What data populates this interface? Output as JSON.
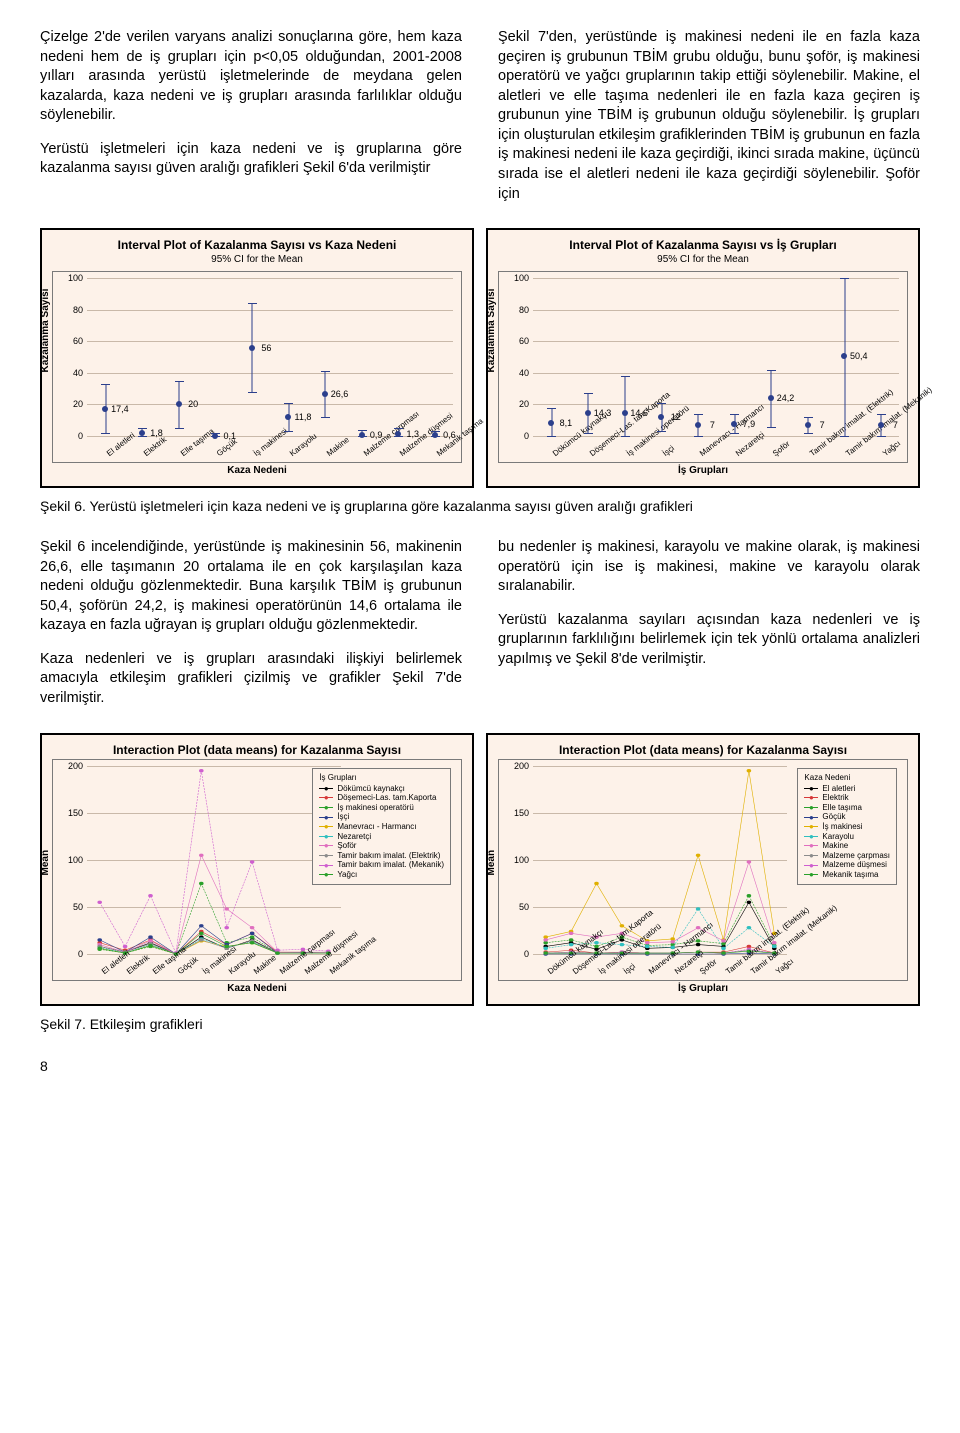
{
  "para1": "Çizelge 2'de verilen varyans analizi sonuçlarına göre, hem kaza nedeni hem de iş grupları için p<0,05 olduğundan, 2001-2008 yılları arasında yerüstü işletmelerinde de meydana gelen kazalarda, kaza nedeni ve iş grupları arasında farlılıklar olduğu söylenebilir.",
  "para2": "Yerüstü işletmeleri için kaza nedeni ve iş gruplarına göre kazalanma sayısı güven aralığı grafikleri Şekil 6'da verilmiştir",
  "para3": "Şekil 7'den, yerüstünde iş makinesi nedeni ile en fazla kaza geçiren iş grubunun TBİM grubu olduğu, bunu şoför, iş makinesi operatörü ve yağcı gruplarının takip ettiği söylenebilir. Makine, el aletleri ve elle taşıma nedenleri ile en fazla kaza geçiren iş grubunun yine TBİM iş grubunun olduğu söylenebilir. İş grupları için oluşturulan etkileşim grafiklerinden TBİM iş grubunun en fazla iş makinesi nedeni ile kaza geçirdiği, ikinci sırada makine, üçüncü sırada ise el aletleri nedeni ile kaza geçirdiği söylenebilir. Şoför için",
  "cap6": "Şekil 6. Yerüstü işletmeleri için kaza nedeni ve iş gruplarına göre kazalanma sayısı güven aralığı grafikleri",
  "para4": "Şekil 6 incelendiğinde, yerüstünde iş makinesinin 56, makinenin 26,6, elle taşımanın 20 ortalama ile en çok karşılaşılan kaza nedeni olduğu gözlenmektedir. Buna karşılık TBİM iş grubunun 50,4, şoförün 24,2, iş makinesi operatörünün 14,6 ortalama ile kazaya en fazla uğrayan iş grupları olduğu gözlenmektedir.",
  "para5": "Kaza nedenleri ve iş grupları arasındaki ilişkiyi belirlemek amacıyla etkileşim grafikleri çizilmiş ve grafikler Şekil 7'de verilmiştir.",
  "para6": "bu nedenler iş makinesi, karayolu ve makine olarak, iş makinesi operatörü için ise iş makinesi, makine ve karayolu olarak sıralanabilir.",
  "para7": "Yerüstü kazalanma sayıları açısından kaza nedenleri ve iş gruplarının farklılığını belirlemek için tek yönlü ortalama analizleri yapılmış ve Şekil 8'de verilmiştir.",
  "cap7": "Şekil 7. Etkileşim grafikleri",
  "pagefoot": "8",
  "fig6a": {
    "title": "Interval Plot of Kazalanma Sayısı vs Kaza Nedeni",
    "sub": "95% CI for the Mean",
    "ylabel": "Kazalanma Sayısı",
    "xlabel": "Kaza Nedeni",
    "ylim": [
      0,
      100
    ],
    "ystep": 20,
    "cats": [
      "El aletleri",
      "Elektrik",
      "Elle taşıma",
      "Göçük",
      "İş makinesi",
      "Karayolu",
      "Makine",
      "Malzeme çarpması",
      "Malzeme düşmesi",
      "Mekanik taşıma"
    ],
    "mean": [
      17.4,
      1.8,
      20,
      0.1,
      56,
      11.8,
      26.6,
      0.9,
      1.3,
      0.6
    ],
    "lo": [
      2,
      -2,
      5,
      -2,
      28,
      3,
      12,
      -2,
      -2,
      -2
    ],
    "hi": [
      33,
      5,
      35,
      2,
      84,
      21,
      41,
      4,
      5,
      3
    ],
    "color": "#2b3f8c",
    "labels": [
      "17,4",
      "1,8",
      "20",
      "0,1",
      "56",
      "11,8",
      "26,6",
      "0,9",
      "1,3",
      "0,6"
    ]
  },
  "fig6b": {
    "title": "Interval Plot of Kazalanma Sayısı vs İş Grupları",
    "sub": "95% CI for the Mean",
    "ylabel": "Kazalanma Sayısı",
    "xlabel": "İş Grupları",
    "ylim": [
      0,
      100
    ],
    "ystep": 20,
    "cats": [
      "Dökümcü kaynakçı",
      "Döşemeci-Las. tam.Kaporta",
      "İş makinesi operatörü",
      "İşçi",
      "Manevracı - Harmancı",
      "Nezaretçi",
      "Şoför",
      "Tamir bakım imalat. (Elektrik)",
      "Tamir bakım imalat. (Mekanik)",
      "Yağcı"
    ],
    "mean": [
      8.1,
      14.3,
      14.6,
      12,
      7,
      7.9,
      24.2,
      7,
      50.4,
      7
    ],
    "lo": [
      -2,
      2,
      -8,
      3,
      0,
      2,
      6,
      2,
      -5,
      0
    ],
    "hi": [
      18,
      27,
      38,
      21,
      14,
      14,
      42,
      12,
      106,
      14
    ],
    "color": "#2b3f8c",
    "labels": [
      "8,1",
      "14,3",
      "14,6",
      "12",
      "7",
      "7,9",
      "24,2",
      "7",
      "50,4",
      "7"
    ]
  },
  "fig7a": {
    "title": "Interaction Plot (data means) for Kazalanma Sayısı",
    "ylabel": "Mean",
    "xlabel": "Kaza Nedeni",
    "ylim": [
      0,
      200
    ],
    "ystep": 50,
    "cats": [
      "El aletleri",
      "Elektrik",
      "Elle taşıma",
      "Göçük",
      "İş makinesi",
      "Karayolu",
      "Makine",
      "Malzeme çarpması",
      "Malzeme düşmesi",
      "Mekanik taşıma"
    ],
    "legend_title": "İş Grupları",
    "legend": [
      "Dökümcü kaynakçı",
      "Döşemeci-Las. tam.Kaporta",
      "İş makinesi operatörü",
      "İşçi",
      "Manevracı - Harmancı",
      "Nezaretçi",
      "Şoför",
      "Tamir bakım imalat. (Elektrik)",
      "Tamir bakım imalat. (Mekanik)",
      "Yağcı"
    ],
    "colors": [
      "#000000",
      "#d63838",
      "#2aa02a",
      "#2b3f8c",
      "#e0b000",
      "#2fbfbf",
      "#e06fbf",
      "#8c8c8c",
      "#cf5fcf",
      "#2aa02a"
    ],
    "series": [
      [
        8,
        2,
        12,
        0,
        18,
        6,
        15,
        1,
        1,
        1
      ],
      [
        12,
        4,
        15,
        0,
        24,
        10,
        22,
        2,
        2,
        1
      ],
      [
        5,
        1,
        8,
        0,
        75,
        12,
        18,
        1,
        1,
        1
      ],
      [
        15,
        2,
        18,
        0,
        30,
        10,
        22,
        1,
        2,
        1
      ],
      [
        6,
        1,
        9,
        0,
        14,
        8,
        12,
        1,
        1,
        1
      ],
      [
        7,
        1,
        10,
        0,
        16,
        7,
        13,
        1,
        1,
        1
      ],
      [
        10,
        2,
        14,
        0,
        105,
        48,
        28,
        2,
        2,
        2
      ],
      [
        8,
        2,
        11,
        0,
        15,
        6,
        14,
        1,
        1,
        1
      ],
      [
        55,
        8,
        62,
        1,
        195,
        28,
        98,
        4,
        5,
        3
      ],
      [
        6,
        1,
        9,
        0,
        22,
        8,
        12,
        1,
        1,
        1
      ]
    ]
  },
  "fig7b": {
    "title": "Interaction Plot (data means) for Kazalanma Sayısı",
    "ylabel": "Mean",
    "xlabel": "İş Grupları",
    "ylim": [
      0,
      200
    ],
    "ystep": 50,
    "cats": [
      "Dökümcü kaynakçı",
      "Döşemeci-Las. tam.Kaporta",
      "İş makinesi operatörü",
      "İşçi",
      "Manevracı - Harmancı",
      "Nezaretçi",
      "Şoför",
      "Tamir bakım imalat. (Elektrik)",
      "Tamir bakım imalat. (Mekanik)",
      "Yağcı"
    ],
    "legend_title": "Kaza Nedeni",
    "legend": [
      "El aletleri",
      "Elektrik",
      "Elle taşıma",
      "Göçük",
      "İş makinesi",
      "Karayolu",
      "Makine",
      "Malzeme çarpması",
      "Malzeme düşmesi",
      "Mekanik taşıma"
    ],
    "colors": [
      "#000000",
      "#d63838",
      "#2aa02a",
      "#2b3f8c",
      "#e0b000",
      "#2fbfbf",
      "#e06fbf",
      "#8c8c8c",
      "#cf5fcf",
      "#2aa02a"
    ],
    "series": [
      [
        8,
        12,
        5,
        15,
        6,
        7,
        10,
        8,
        55,
        6
      ],
      [
        2,
        4,
        1,
        2,
        1,
        1,
        2,
        2,
        8,
        1
      ],
      [
        12,
        15,
        8,
        18,
        9,
        10,
        14,
        11,
        62,
        9
      ],
      [
        0,
        0,
        0,
        0,
        0,
        0,
        0,
        0,
        1,
        0
      ],
      [
        18,
        24,
        75,
        30,
        14,
        16,
        105,
        15,
        195,
        22
      ],
      [
        6,
        10,
        12,
        10,
        8,
        7,
        48,
        6,
        28,
        8
      ],
      [
        15,
        22,
        18,
        22,
        12,
        13,
        28,
        14,
        98,
        12
      ],
      [
        1,
        2,
        1,
        1,
        1,
        1,
        2,
        1,
        4,
        1
      ],
      [
        1,
        2,
        1,
        2,
        1,
        1,
        2,
        1,
        5,
        1
      ],
      [
        1,
        1,
        1,
        1,
        1,
        1,
        2,
        1,
        3,
        1
      ]
    ]
  }
}
